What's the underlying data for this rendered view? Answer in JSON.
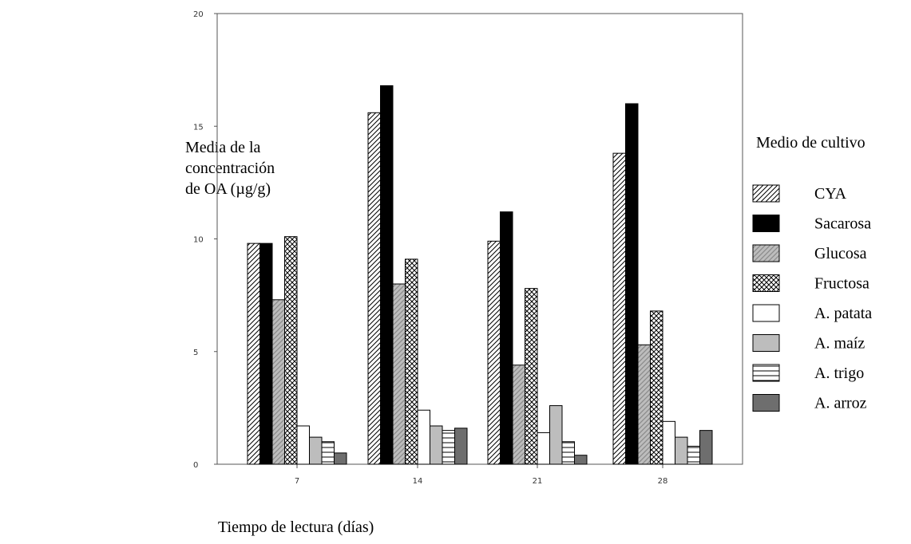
{
  "chart_data": {
    "type": "bar",
    "title": "",
    "xlabel": "Tiempo de lectura (días)",
    "ylabel": [
      "Media de la",
      "concentración",
      "de OA (µg/g)"
    ],
    "legend_title": "Medio de cultivo",
    "legend_position": "right",
    "grid": false,
    "ylim": [
      0,
      20
    ],
    "yticks": [
      "0",
      "5",
      "10",
      "15",
      "20"
    ],
    "categories": [
      "7",
      "14",
      "21",
      "28"
    ],
    "series": [
      {
        "name": "CYA",
        "pattern": "diag-right",
        "color": "#ffffff",
        "values": [
          9.8,
          15.6,
          9.9,
          13.8
        ]
      },
      {
        "name": "Sacarosa",
        "pattern": "solid",
        "color": "#000000",
        "values": [
          9.8,
          16.8,
          11.2,
          16.0
        ]
      },
      {
        "name": "Glucosa",
        "pattern": "diag-left-gray",
        "color": "#bdbdbd",
        "values": [
          7.3,
          8.0,
          4.4,
          5.3
        ]
      },
      {
        "name": "Fructosa",
        "pattern": "crosshatch",
        "color": "#ffffff",
        "values": [
          10.1,
          9.1,
          7.8,
          6.8
        ]
      },
      {
        "name": "A. patata",
        "pattern": "solid",
        "color": "#ffffff",
        "values": [
          1.7,
          2.4,
          1.4,
          1.9
        ]
      },
      {
        "name": "A. maíz",
        "pattern": "solid",
        "color": "#bdbdbd",
        "values": [
          1.2,
          1.7,
          2.6,
          1.2
        ]
      },
      {
        "name": "A. trigo",
        "pattern": "horizontal",
        "color": "#ffffff",
        "values": [
          1.0,
          1.5,
          1.0,
          0.8
        ]
      },
      {
        "name": "A. arroz",
        "pattern": "solid",
        "color": "#6e6e6e",
        "values": [
          0.5,
          1.6,
          0.4,
          1.5
        ]
      }
    ]
  }
}
